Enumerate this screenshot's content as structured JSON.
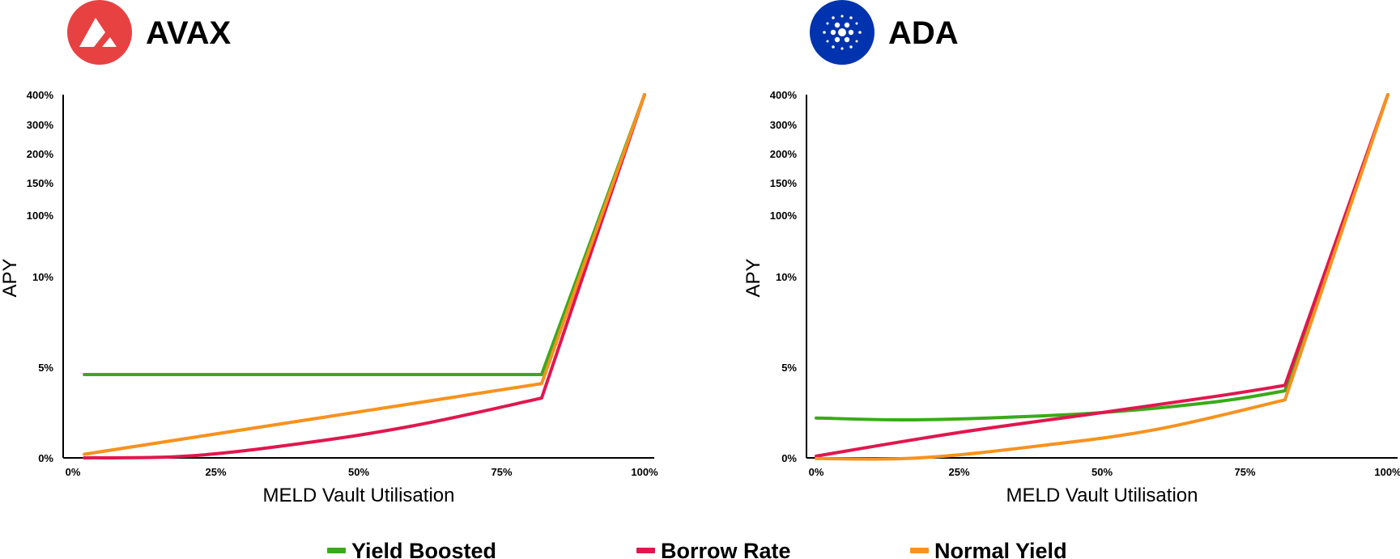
{
  "chart_data": [
    {
      "type": "line",
      "title": "AVAX",
      "logo": {
        "color": "#e84142",
        "icon": "avalanche-logo-icon"
      },
      "xlabel": "MELD Vault Utilisation",
      "ylabel": "APY",
      "xlim": [
        0,
        100
      ],
      "x_ticks": [
        "0%",
        "25%",
        "50%",
        "75%",
        "100%"
      ],
      "y_ticks": [
        "0%",
        "5%",
        "10%",
        "100%",
        "150%",
        "200%",
        "300%",
        "400%"
      ],
      "y_scale": "non-linear (tick spacing as labelled)",
      "grid": false,
      "series": [
        {
          "name": "Yield Boosted",
          "color": "#3aaa1a",
          "points": [
            [
              2,
              4.6
            ],
            [
              82,
              4.6
            ],
            [
              100,
              400
            ]
          ]
        },
        {
          "name": "Borrow Rate",
          "color": "#e0174f",
          "points": [
            [
              2,
              0
            ],
            [
              20,
              0.1
            ],
            [
              40,
              0.8
            ],
            [
              60,
              1.8
            ],
            [
              82,
              3.3
            ],
            [
              100,
              400
            ]
          ]
        },
        {
          "name": "Normal Yield",
          "color": "#f7921e",
          "points": [
            [
              2,
              0.2
            ],
            [
              82,
              4.1
            ],
            [
              100,
              400
            ]
          ]
        }
      ]
    },
    {
      "type": "line",
      "title": "ADA",
      "logo": {
        "color": "#0033ad",
        "icon": "cardano-logo-icon"
      },
      "xlabel": "MELD Vault Utilisation",
      "ylabel": "APY",
      "xlim": [
        0,
        100
      ],
      "x_ticks": [
        "0%",
        "25%",
        "50%",
        "75%",
        "100%"
      ],
      "y_ticks": [
        "0%",
        "5%",
        "10%",
        "100%",
        "150%",
        "200%",
        "300%",
        "400%"
      ],
      "y_scale": "non-linear (tick spacing as labelled)",
      "grid": false,
      "series": [
        {
          "name": "Yield Boosted",
          "color": "#3aaa1a",
          "points": [
            [
              0,
              2.2
            ],
            [
              15,
              2.1
            ],
            [
              30,
              2.2
            ],
            [
              50,
              2.5
            ],
            [
              70,
              3.1
            ],
            [
              82,
              3.7
            ],
            [
              100,
              400
            ]
          ]
        },
        {
          "name": "Borrow Rate",
          "color": "#e0174f",
          "points": [
            [
              0,
              0.1
            ],
            [
              25,
              1.4
            ],
            [
              50,
              2.5
            ],
            [
              70,
              3.4
            ],
            [
              82,
              4.0
            ],
            [
              100,
              400
            ]
          ]
        },
        {
          "name": "Normal Yield",
          "color": "#f7921e",
          "points": [
            [
              0,
              -0.1
            ],
            [
              18,
              0
            ],
            [
              40,
              0.7
            ],
            [
              60,
              1.6
            ],
            [
              82,
              3.2
            ],
            [
              100,
              400
            ]
          ]
        }
      ]
    }
  ],
  "legend": [
    {
      "label": "Yield Boosted",
      "color": "#3aaa1a"
    },
    {
      "label": "Borrow Rate",
      "color": "#e0174f"
    },
    {
      "label": "Normal Yield",
      "color": "#f7921e"
    }
  ]
}
